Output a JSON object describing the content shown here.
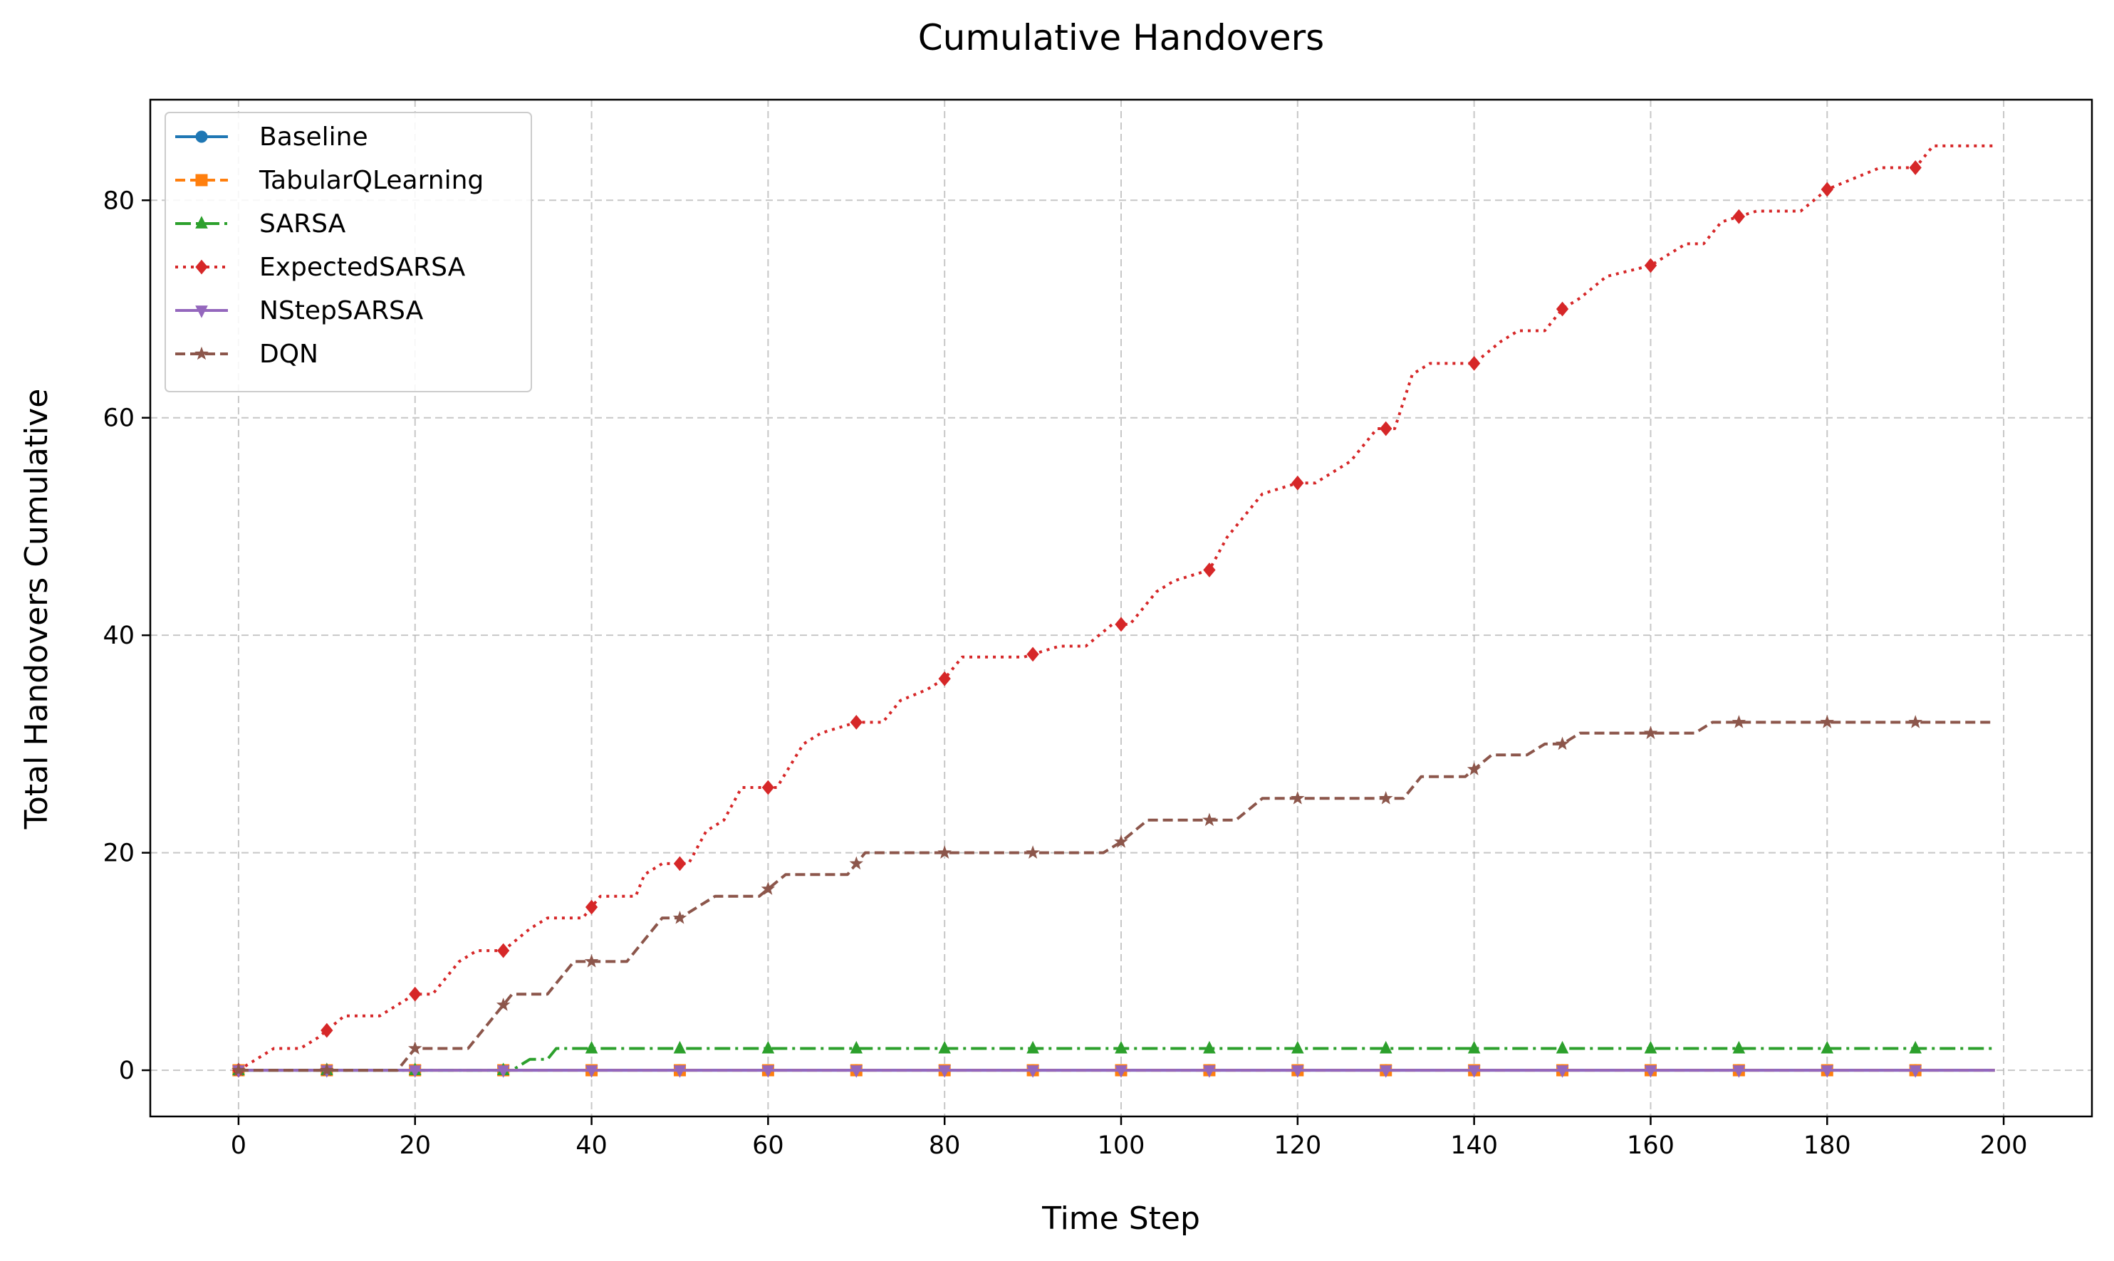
{
  "chart_data": {
    "type": "line",
    "title": "Cumulative Handovers",
    "xlabel": "Time Step",
    "ylabel": "Total Handovers Cumulative",
    "xlim": [
      -10,
      210
    ],
    "ylim": [
      -4.25,
      89.25
    ],
    "xticks": [
      0,
      20,
      40,
      60,
      80,
      100,
      120,
      140,
      160,
      180,
      200
    ],
    "yticks": [
      0,
      20,
      40,
      60,
      80
    ],
    "grid": true,
    "legend_position": "top-left",
    "series": [
      {
        "name": "Baseline",
        "color": "#1f77b4",
        "linestyle": "solid",
        "marker": "circle",
        "points": [
          [
            0,
            0
          ],
          [
            199,
            0
          ]
        ]
      },
      {
        "name": "TabularQLearning",
        "color": "#ff7f0e",
        "linestyle": "dashed",
        "marker": "square",
        "points": [
          [
            0,
            0
          ],
          [
            199,
            0
          ]
        ]
      },
      {
        "name": "SARSA",
        "color": "#2ca02c",
        "linestyle": "dashdot",
        "marker": "triangle-up",
        "points": [
          [
            0,
            0
          ],
          [
            31,
            0
          ],
          [
            33,
            1
          ],
          [
            35,
            1
          ],
          [
            36,
            2
          ],
          [
            199,
            2
          ]
        ]
      },
      {
        "name": "ExpectedSARSA",
        "color": "#d62728",
        "linestyle": "dotted",
        "marker": "diamond",
        "points": [
          [
            0,
            0
          ],
          [
            4,
            2
          ],
          [
            7,
            2
          ],
          [
            9,
            3
          ],
          [
            12,
            5
          ],
          [
            16,
            5
          ],
          [
            20,
            7
          ],
          [
            22,
            7
          ],
          [
            25,
            10
          ],
          [
            27,
            11
          ],
          [
            30,
            11
          ],
          [
            33,
            13
          ],
          [
            35,
            14
          ],
          [
            39,
            14
          ],
          [
            41,
            16
          ],
          [
            45,
            16
          ],
          [
            46,
            18
          ],
          [
            48,
            19
          ],
          [
            51,
            19
          ],
          [
            53,
            22
          ],
          [
            55,
            23
          ],
          [
            57,
            26
          ],
          [
            61,
            26
          ],
          [
            64,
            30
          ],
          [
            66,
            31
          ],
          [
            70,
            32
          ],
          [
            73,
            32
          ],
          [
            75,
            34
          ],
          [
            78,
            35
          ],
          [
            80,
            36
          ],
          [
            82,
            38
          ],
          [
            89,
            38
          ],
          [
            93,
            39
          ],
          [
            96,
            39
          ],
          [
            99,
            41
          ],
          [
            101,
            41
          ],
          [
            104,
            44
          ],
          [
            106,
            45
          ],
          [
            110,
            46
          ],
          [
            112,
            49
          ],
          [
            116,
            53
          ],
          [
            120,
            54
          ],
          [
            122,
            54
          ],
          [
            124,
            55
          ],
          [
            126,
            56
          ],
          [
            129,
            59
          ],
          [
            131,
            59
          ],
          [
            133,
            64
          ],
          [
            135,
            65
          ],
          [
            140,
            65
          ],
          [
            143,
            67
          ],
          [
            145,
            68
          ],
          [
            148,
            68
          ],
          [
            150,
            70
          ],
          [
            152,
            71
          ],
          [
            155,
            73
          ],
          [
            160,
            74
          ],
          [
            162,
            75
          ],
          [
            164,
            76
          ],
          [
            166,
            76
          ],
          [
            168,
            78
          ],
          [
            172,
            79
          ],
          [
            177,
            79
          ],
          [
            180,
            81
          ],
          [
            183,
            82
          ],
          [
            186,
            83
          ],
          [
            190,
            83
          ],
          [
            192,
            85
          ],
          [
            199,
            85
          ]
        ]
      },
      {
        "name": "NStepSARSA",
        "color": "#9467bd",
        "linestyle": "solid",
        "marker": "triangle-down",
        "points": [
          [
            0,
            0
          ],
          [
            199,
            0
          ]
        ]
      },
      {
        "name": "DQN",
        "color": "#8c564b",
        "linestyle": "dashed",
        "marker": "star",
        "points": [
          [
            0,
            0
          ],
          [
            18,
            0
          ],
          [
            20,
            2
          ],
          [
            26,
            2
          ],
          [
            29,
            5
          ],
          [
            30,
            6
          ],
          [
            31,
            7
          ],
          [
            35,
            7
          ],
          [
            38,
            10
          ],
          [
            44,
            10
          ],
          [
            48,
            14
          ],
          [
            50,
            14
          ],
          [
            52,
            15
          ],
          [
            54,
            16
          ],
          [
            59,
            16
          ],
          [
            62,
            18
          ],
          [
            69,
            18
          ],
          [
            71,
            20
          ],
          [
            98,
            20
          ],
          [
            100,
            21
          ],
          [
            103,
            23
          ],
          [
            113,
            23
          ],
          [
            116,
            25
          ],
          [
            132,
            25
          ],
          [
            134,
            27
          ],
          [
            139,
            27
          ],
          [
            142,
            29
          ],
          [
            146,
            29
          ],
          [
            148,
            30
          ],
          [
            150,
            30
          ],
          [
            152,
            31
          ],
          [
            165,
            31
          ],
          [
            167,
            32
          ],
          [
            199,
            32
          ]
        ]
      }
    ]
  }
}
